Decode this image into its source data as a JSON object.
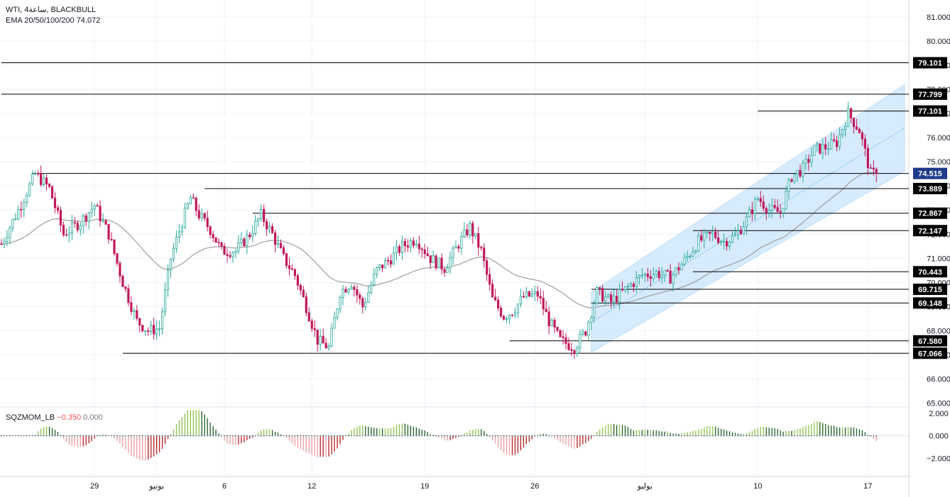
{
  "header": {
    "symbol_line": "WTI, 4ساعة, BLACKBULL",
    "indicator_line": "EMA 20/50/100/200  74.072"
  },
  "oscillator": {
    "name": "SQZMOM_LB",
    "value": "−0.350",
    "value2": "0.000"
  },
  "colors": {
    "up": "#26a69a",
    "down": "#c2185b",
    "up_body": "#ffffff",
    "ema": "#9e9e9e",
    "channel_fill": "#bbdefb",
    "hline": "#000000",
    "badge_bg": "#000000",
    "badge_text": "#ffffff",
    "current_badge_bg": "#1e3a8a",
    "grid": "#f0f3fa",
    "mom_pos_strong": "#8bc34a",
    "mom_pos_weak": "#1b5e20",
    "mom_neg_strong": "#ef9a9a",
    "mom_neg_weak": "#b71c1c"
  },
  "chart_data": {
    "type": "candlestick",
    "price_axis_ticks": [
      "81.000",
      "80.000",
      "79.000",
      "78.000",
      "77.000",
      "76.000",
      "75.000",
      "74.000",
      "73.000",
      "72.000",
      "71.000",
      "70.000",
      "69.000",
      "68.000",
      "67.000",
      "66.000",
      "65.000"
    ],
    "price_range": [
      64.9,
      81.7
    ],
    "levels": [
      {
        "value": 79.101,
        "label": "79.101",
        "x_start_index": 0
      },
      {
        "value": 77.799,
        "label": "77.799",
        "x_start_index": 0
      },
      {
        "value": 77.101,
        "label": "77.101",
        "x_start_index": 268
      },
      {
        "value": 74.515,
        "label": "74.515",
        "x_start_index": 11,
        "current": true
      },
      {
        "value": 73.889,
        "label": "73.889",
        "x_start_index": 72
      },
      {
        "value": 72.867,
        "label": "72.867",
        "x_start_index": 89
      },
      {
        "value": 72.147,
        "label": "72.147",
        "x_start_index": 245
      },
      {
        "value": 70.443,
        "label": "70.443",
        "x_start_index": 245
      },
      {
        "value": 69.715,
        "label": "69.715",
        "x_start_index": 209
      },
      {
        "value": 69.148,
        "label": "69.148",
        "x_start_index": 209
      },
      {
        "value": 67.58,
        "label": "67.580",
        "x_start_index": 180
      },
      {
        "value": 67.066,
        "label": "67.066",
        "x_start_index": 43
      }
    ],
    "channel": {
      "start_index": 209,
      "end_index": 320,
      "lower_start": 67.1,
      "lower_end": 74.6,
      "upper_start": 69.6,
      "upper_end": 78.2
    },
    "time_labels": [
      {
        "label": "29",
        "index": 33
      },
      {
        "label": "يونيو",
        "index": 55
      },
      {
        "label": "6",
        "index": 79
      },
      {
        "label": "12",
        "index": 110
      },
      {
        "label": "19",
        "index": 150
      },
      {
        "label": "26",
        "index": 189
      },
      {
        "label": "يوليو",
        "index": 228
      },
      {
        "label": "10",
        "index": 268
      },
      {
        "label": "17",
        "index": 307
      }
    ],
    "oscillator_ticks": [
      "2.000",
      "0.000",
      "−2.000"
    ],
    "oscillator_range": [
      -3.5,
      2.5
    ],
    "last_close": 74.515,
    "ema_last": 74.072
  }
}
